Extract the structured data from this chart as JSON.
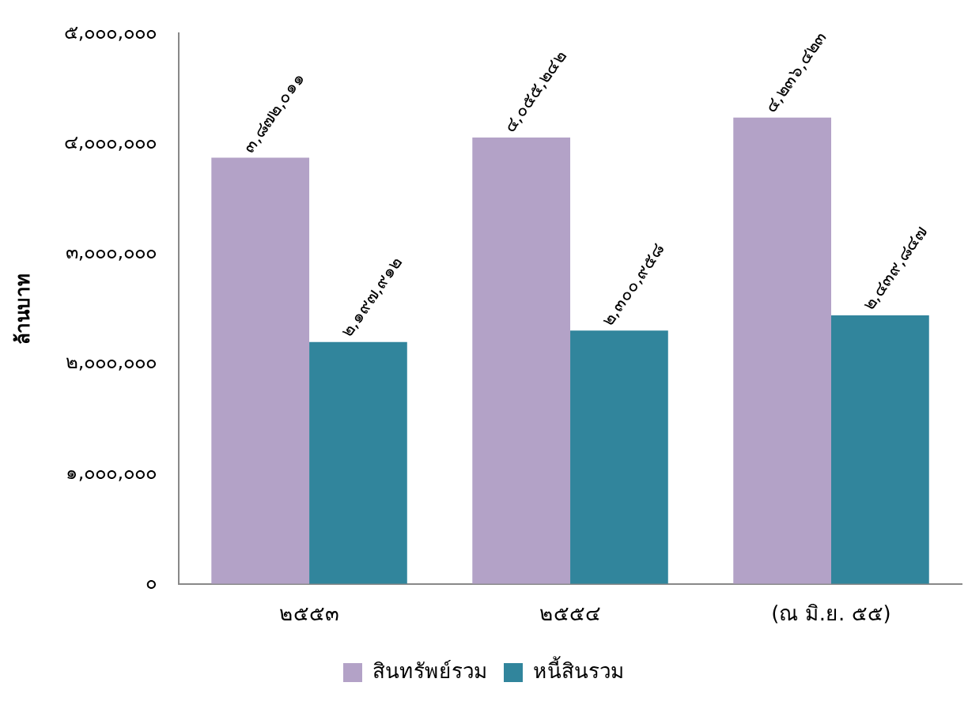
{
  "chart_data": {
    "type": "bar",
    "ylabel": "ล้านบาท",
    "categories": [
      "๒๕๕๓",
      "๒๕๕๔",
      "(ณ มิ.ย. ๕๕)"
    ],
    "series": [
      {
        "name": "สินทรัพย์รวม",
        "color": "#b3a2c7",
        "values": [
          3872011,
          4055242,
          4236423
        ],
        "value_labels": [
          "๓,๘๗๒,๐๑๑",
          "๔,๐๕๕,๒๔๒",
          "๔,๒๓๖,๔๒๓"
        ]
      },
      {
        "name": "หนี้สินรวม",
        "color": "#31859c",
        "values": [
          2197912,
          2300958,
          2439847
        ],
        "value_labels": [
          "๒,๑๙๗,๙๑๒",
          "๒,๓๐๐,๙๕๘",
          "๒,๔๓๙,๘๔๗"
        ]
      }
    ],
    "ylim": [
      0,
      5000000
    ],
    "yticks": [
      {
        "value": 0,
        "label": "๐"
      },
      {
        "value": 1000000,
        "label": "๑,๐๐๐,๐๐๐"
      },
      {
        "value": 2000000,
        "label": "๒,๐๐๐,๐๐๐"
      },
      {
        "value": 3000000,
        "label": "๓,๐๐๐,๐๐๐"
      },
      {
        "value": 4000000,
        "label": "๔,๐๐๐,๐๐๐"
      },
      {
        "value": 5000000,
        "label": "๕,๐๐๐,๐๐๐"
      }
    ],
    "grid": false,
    "legend": "bottom"
  }
}
